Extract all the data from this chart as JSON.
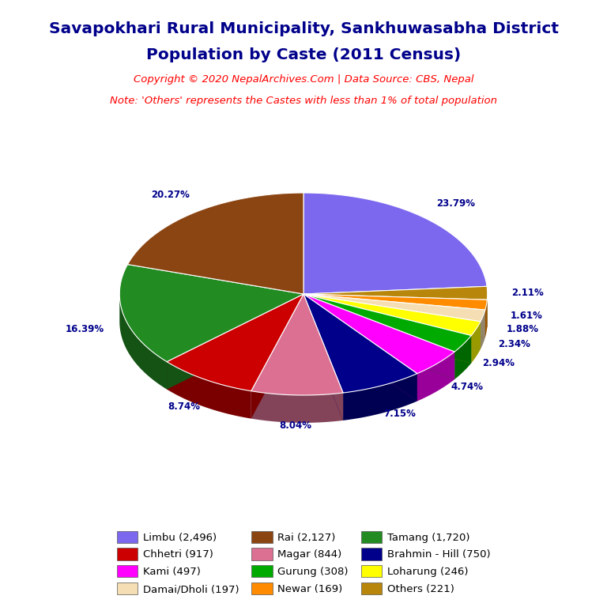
{
  "title_line1": "Savapokhari Rural Municipality, Sankhuwasabha District",
  "title_line2": "Population by Caste (2011 Census)",
  "copyright_text": "Copyright © 2020 NepalArchives.Com | Data Source: CBS, Nepal",
  "note_text": "Note: 'Others' represents the Castes with less than 1% of total population",
  "order_names": [
    "Limbu",
    "Others",
    "Newar",
    "Damai/Dholi",
    "Loharung",
    "Gurung",
    "Kami",
    "Brahmin - Hill",
    "Magar",
    "Chhetri",
    "Tamang",
    "Rai"
  ],
  "order_vals": [
    2496,
    221,
    169,
    197,
    246,
    308,
    497,
    750,
    844,
    917,
    1720,
    2127
  ],
  "order_colors": [
    "#7B68EE",
    "#B8860B",
    "#FF8C00",
    "#F5DEB3",
    "#FFFF00",
    "#00AA00",
    "#FF00FF",
    "#00008B",
    "#DB7093",
    "#CC0000",
    "#228B22",
    "#8B4513"
  ],
  "order_pcts": [
    "23.79%",
    "2.11%",
    "1.61%",
    "1.88%",
    "2.34%",
    "2.94%",
    "4.74%",
    "7.15%",
    "8.04%",
    "8.74%",
    "16.39%",
    "20.27%"
  ],
  "legend_info": [
    [
      "Limbu (2,496)",
      "#7B68EE"
    ],
    [
      "Chhetri (917)",
      "#CC0000"
    ],
    [
      "Kami (497)",
      "#FF00FF"
    ],
    [
      "Damai/Dholi (197)",
      "#F5DEB3"
    ],
    [
      "Rai (2,127)",
      "#8B4513"
    ],
    [
      "Magar (844)",
      "#DB7093"
    ],
    [
      "Gurung (308)",
      "#00AA00"
    ],
    [
      "Newar (169)",
      "#FF8C00"
    ],
    [
      "Tamang (1,720)",
      "#228B22"
    ],
    [
      "Brahmin - Hill (750)",
      "#00008B"
    ],
    [
      "Loharung (246)",
      "#FFFF00"
    ],
    [
      "Others (221)",
      "#B8860B"
    ]
  ],
  "title_color": "#00008B",
  "copyright_color": "#FF0000",
  "note_color": "#FF0000",
  "label_color": "#00008B",
  "background_color": "#FFFFFF",
  "startangle": 90,
  "depth_val": 0.15,
  "yscale": 0.55
}
